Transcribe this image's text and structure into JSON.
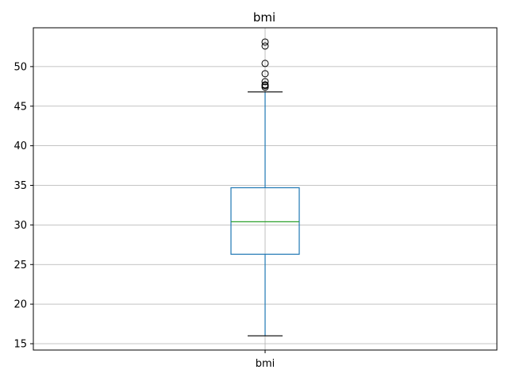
{
  "chart_data": {
    "type": "box",
    "title": "bmi",
    "categories": [
      "bmi"
    ],
    "ylim": [
      14.2,
      54.9
    ],
    "yticks": [
      15,
      20,
      25,
      30,
      35,
      40,
      45,
      50
    ],
    "grid": true,
    "series": [
      {
        "whisker_low": 16.0,
        "q1": 26.3,
        "median": 30.4,
        "q3": 34.7,
        "whisker_high": 46.8,
        "outliers": [
          47.4,
          47.6,
          47.7,
          48.1,
          49.1,
          50.4,
          52.6,
          53.1
        ]
      }
    ],
    "colors": {
      "box": "#1f77b4",
      "median": "#2ca02c",
      "whisker_cap": "#000000",
      "grid": "#b0b0b0"
    }
  }
}
